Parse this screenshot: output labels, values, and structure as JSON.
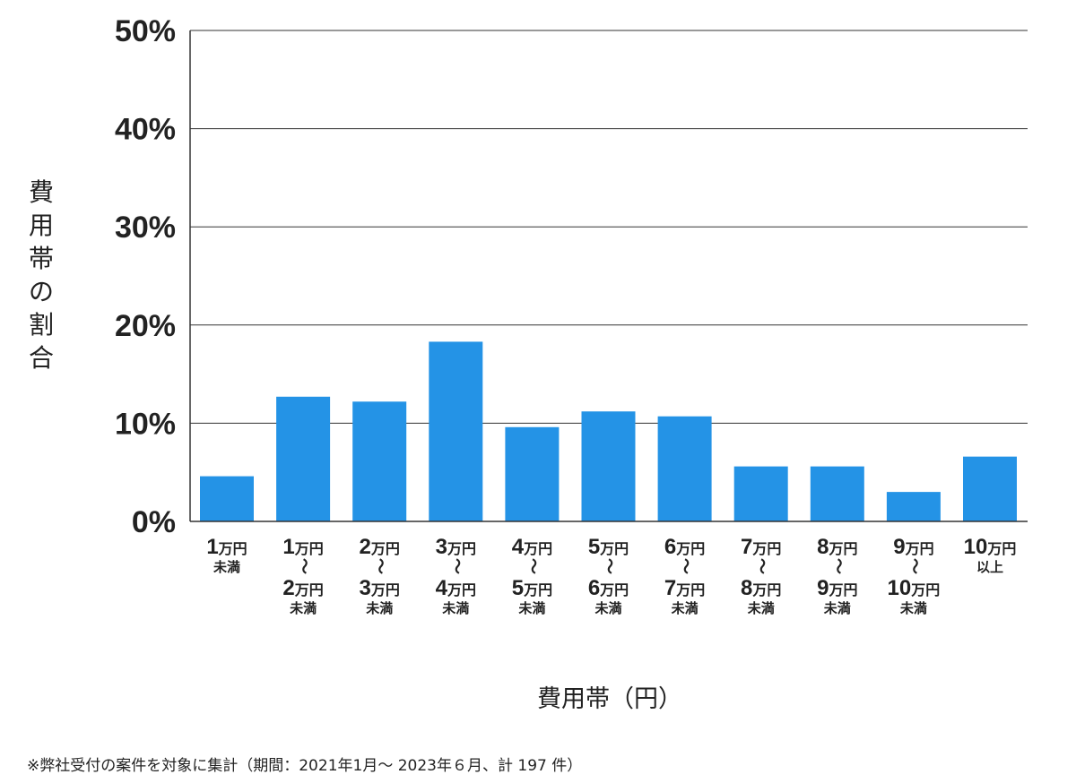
{
  "chart_data": {
    "type": "bar",
    "ylabel": "費用帯の割合",
    "xlabel": "費用帯（円）",
    "ylim": [
      0,
      50
    ],
    "y_ticks": [
      "0%",
      "10%",
      "20%",
      "30%",
      "40%",
      "50%"
    ],
    "y_tick_values": [
      0,
      10,
      20,
      30,
      40,
      50
    ],
    "grid": true,
    "bar_color": "#2493e6",
    "categories": [
      [
        "1万円",
        "未満"
      ],
      [
        "1万円",
        "〜",
        "2万円",
        "未満"
      ],
      [
        "2万円",
        "〜",
        "3万円",
        "未満"
      ],
      [
        "3万円",
        "〜",
        "4万円",
        "未満"
      ],
      [
        "4万円",
        "〜",
        "5万円",
        "未満"
      ],
      [
        "5万円",
        "〜",
        "6万円",
        "未満"
      ],
      [
        "6万円",
        "〜",
        "7万円",
        "未満"
      ],
      [
        "7万円",
        "〜",
        "8万円",
        "未満"
      ],
      [
        "8万円",
        "〜",
        "9万円",
        "未満"
      ],
      [
        "9万円",
        "〜",
        "10万円",
        "未満"
      ],
      [
        "10万円",
        "以上"
      ]
    ],
    "values": [
      4.6,
      12.7,
      12.2,
      18.3,
      9.6,
      11.2,
      10.7,
      5.6,
      5.6,
      3.0,
      6.6
    ]
  },
  "footnote": "※弊社受付の案件を対象に集計（期間：2021年1月～ 2023年６月、計 197 件）"
}
